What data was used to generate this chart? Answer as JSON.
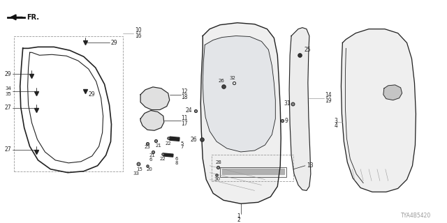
{
  "diagram_code": "TYA4B5420",
  "bg_color": "#ffffff",
  "fig_width": 6.4,
  "fig_height": 3.2,
  "dpi": 100,
  "dark": "#222222",
  "light_gray": "#999999",
  "mid_gray": "#666666"
}
